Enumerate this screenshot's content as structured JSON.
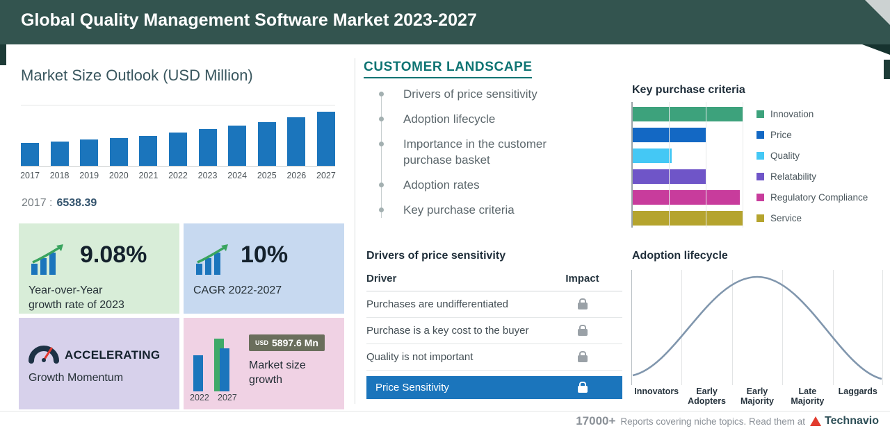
{
  "header": {
    "title": "Global Quality Management Software Market 2023-2027"
  },
  "market_outlook": {
    "title": "Market Size Outlook (USD Million)",
    "base_year": {
      "label": "2017 :",
      "value": "6538.39"
    }
  },
  "cards": {
    "yoy": {
      "value": "9.08%",
      "lines": [
        "Year-over-Year",
        "growth rate of 2023"
      ]
    },
    "cagr": {
      "value": "10%",
      "label": "CAGR 2022-2027"
    },
    "momentum": {
      "title": "ACCELERATING",
      "subtitle": "Growth Momentum"
    },
    "size_growth": {
      "currency": "USD",
      "amount": "5897.6 Mn",
      "lines": [
        "Market size",
        "growth"
      ],
      "years": [
        "2022",
        "2027"
      ]
    }
  },
  "customer_landscape": {
    "title": "CUSTOMER LANDSCAPE",
    "timeline": [
      "Drivers of price sensitivity",
      "Adoption lifecycle",
      "Importance in the customer purchase basket",
      "Adoption rates",
      "Key purchase criteria"
    ],
    "key_purchase_criteria": {
      "title": "Key purchase criteria",
      "items": [
        {
          "label": "Innovation",
          "color": "#3da27c"
        },
        {
          "label": "Price",
          "color": "#1368c4"
        },
        {
          "label": "Quality",
          "color": "#44c8f5"
        },
        {
          "label": "Relatability",
          "color": "#6f55c8"
        },
        {
          "label": "Regulatory Compliance",
          "color": "#c83c9c"
        },
        {
          "label": "Service",
          "color": "#b5a42e"
        }
      ]
    },
    "price_sensitivity": {
      "title": "Drivers of price sensitivity",
      "columns": [
        "Driver",
        "Impact"
      ],
      "rows": [
        "Purchases are undifferentiated",
        "Purchase is a key cost to the buyer",
        "Quality is not important"
      ],
      "highlight": "Price Sensitivity"
    },
    "adoption_lifecycle": {
      "title": "Adoption lifecycle",
      "stages": [
        "Innovators",
        "Early Adopters",
        "Early Majority",
        "Late Majority",
        "Laggards"
      ]
    }
  },
  "footer": {
    "count": "17000+",
    "text": "Reports covering niche topics. Read them at",
    "brand": "Technavio"
  },
  "colors": {
    "header_bg": "#33544f",
    "bar_blue": "#1b75bc",
    "teal_accent": "#0e7473",
    "highlight_blue": "#1b75bc"
  },
  "chart_data": [
    {
      "type": "bar",
      "title": "Market Size Outlook (USD Million)",
      "ylabel": "USD Million",
      "categories": [
        "2017",
        "2018",
        "2019",
        "2020",
        "2021",
        "2022",
        "2023",
        "2024",
        "2025",
        "2026",
        "2027"
      ],
      "values": [
        6538.39,
        7010,
        7520,
        8060,
        8650,
        9660,
        10540,
        11500,
        12600,
        13900,
        15560
      ],
      "note": "Only the 2017 value (6538.39) is labeled in the image; other values estimated from bar heights."
    },
    {
      "type": "bar",
      "orientation": "horizontal",
      "title": "Key purchase criteria",
      "categories": [
        "Innovation",
        "Price",
        "Quality",
        "Relatability",
        "Regulatory Compliance",
        "Service"
      ],
      "values": [
        3,
        2,
        1.05,
        2,
        2.9,
        3
      ],
      "note": "Axis unlabeled; values are relative lengths in gridline units."
    },
    {
      "type": "line",
      "title": "Adoption lifecycle",
      "x": [
        "Innovators",
        "Early Adopters",
        "Early Majority",
        "Late Majority",
        "Laggards"
      ],
      "values": [
        0.05,
        0.5,
        1.0,
        0.5,
        0.05
      ],
      "note": "Unlabeled bell curve; values are relative heights."
    },
    {
      "type": "bar",
      "title": "Market size growth",
      "categories": [
        "2022",
        "2027"
      ],
      "values": [
        0.65,
        1.0
      ],
      "annotation": "USD 5897.6 Mn",
      "note": "Relative bar heights; growth amount labeled USD 5897.6 Mn."
    }
  ]
}
